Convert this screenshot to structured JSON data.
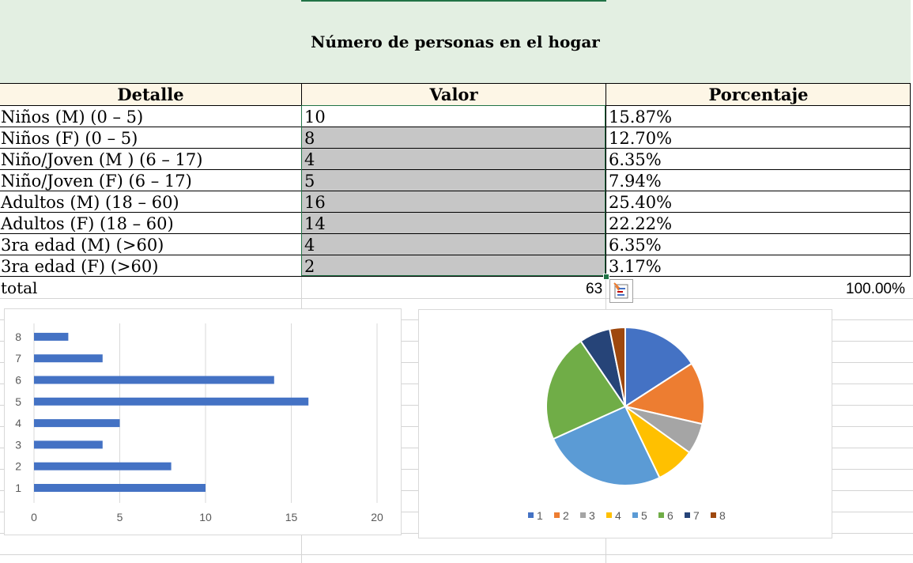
{
  "table": {
    "title": "Número de personas en el hogar",
    "headers": [
      "Detalle",
      "Valor",
      "Porcentaje"
    ],
    "rows": [
      {
        "detalle": "Niños (M) (0 – 5)",
        "valor": "10",
        "porcentaje": "15.87%"
      },
      {
        "detalle": "Niños (F) (0 – 5)",
        "valor": "8",
        "porcentaje": "12.70%"
      },
      {
        "detalle": "Niño/Joven (M ) (6 – 17)",
        "valor": "4",
        "porcentaje": "6.35%"
      },
      {
        "detalle": "Niño/Joven (F) (6 – 17)",
        "valor": "5",
        "porcentaje": "7.94%"
      },
      {
        "detalle": "Adultos (M) (18 – 60)",
        "valor": "16",
        "porcentaje": "25.40%"
      },
      {
        "detalle": "Adultos (F) (18 – 60)",
        "valor": "14",
        "porcentaje": "22.22%"
      },
      {
        "detalle": "3ra edad (M) (>60)",
        "valor": "4",
        "porcentaje": "6.35%"
      },
      {
        "detalle": "3ra edad (F) (>60)",
        "valor": "2",
        "porcentaje": "3.17%"
      }
    ],
    "total_label": "total",
    "total_value": "63",
    "total_percent": "100.00%"
  },
  "icons": {
    "quick_analysis": "quick-analysis-icon"
  },
  "colors": {
    "accent_green": "#217346",
    "title_band": "#e3efe2",
    "header_band": "#fdf6e6",
    "value_fill": "#c6c6c6",
    "bar": "#4472c4"
  },
  "chart_data": [
    {
      "type": "bar",
      "orientation": "horizontal",
      "categories": [
        "1",
        "2",
        "3",
        "4",
        "5",
        "6",
        "7",
        "8"
      ],
      "values": [
        10,
        8,
        4,
        5,
        16,
        14,
        4,
        2
      ],
      "xlim": [
        0,
        20
      ],
      "xticks": [
        0,
        5,
        10,
        15,
        20
      ],
      "grid": true,
      "color": "#4472c4"
    },
    {
      "type": "pie",
      "categories": [
        "1",
        "2",
        "3",
        "4",
        "5",
        "6",
        "7",
        "8"
      ],
      "values": [
        10,
        8,
        4,
        5,
        16,
        14,
        4,
        2
      ],
      "colors": [
        "#4472c4",
        "#ed7d31",
        "#a5a5a5",
        "#ffc000",
        "#5b9bd5",
        "#70ad47",
        "#264478",
        "#9e480e"
      ],
      "legend": "bottom"
    }
  ]
}
